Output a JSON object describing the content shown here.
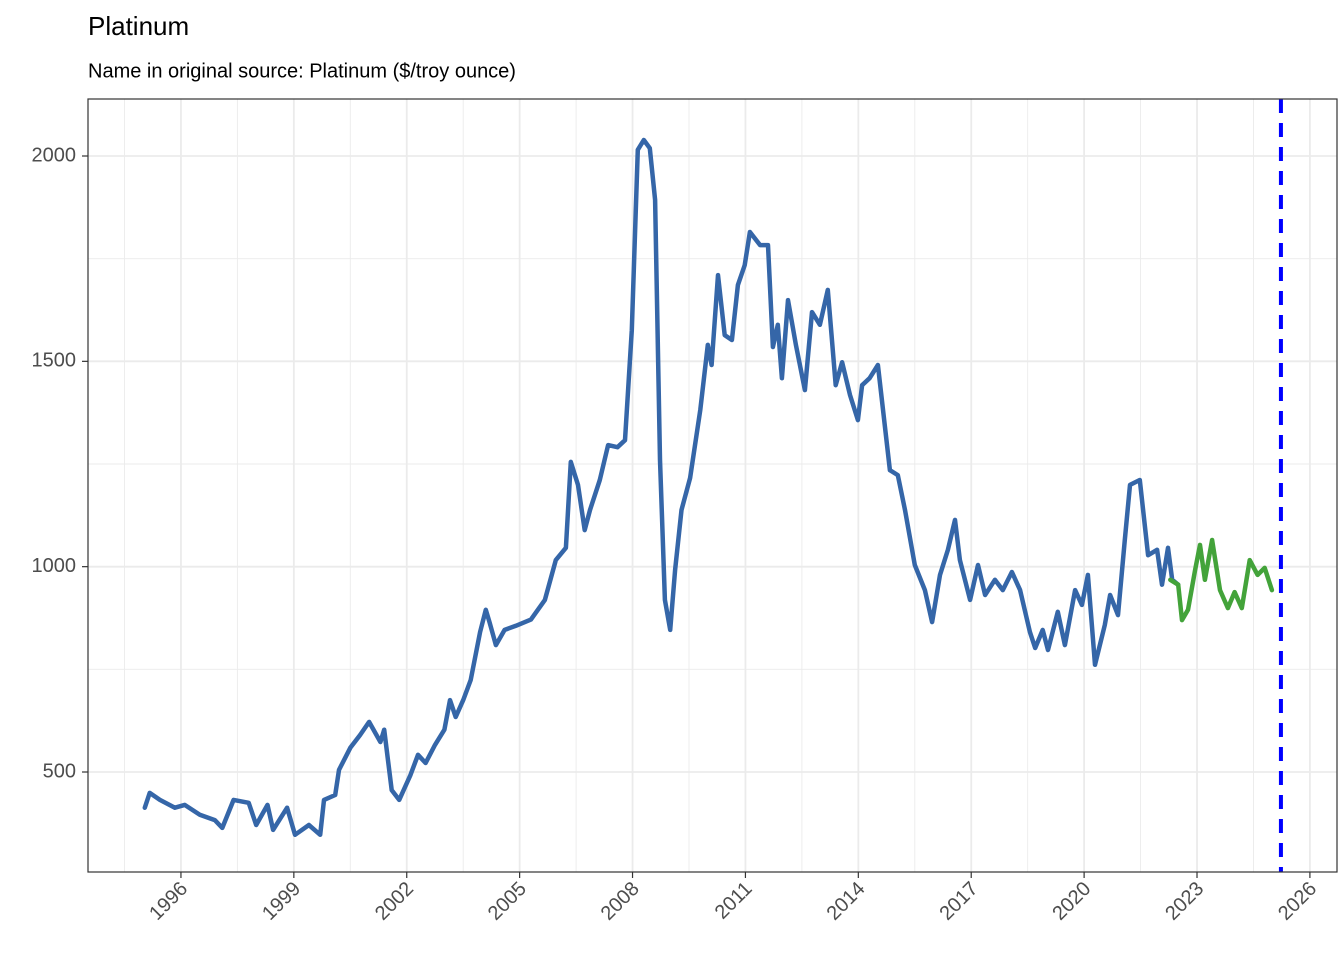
{
  "chart_data": {
    "type": "line",
    "title": "Platinum",
    "subtitle": "Name in original source: Platinum ($/troy ounce)",
    "xlim": [
      1993.53,
      2026.72
    ],
    "xticks": [
      1996,
      1999,
      2002,
      2005,
      2008,
      2011,
      2014,
      2017,
      2020,
      2023,
      2026
    ],
    "ylim": [
      256.5,
      2138.8
    ],
    "yticks": [
      500,
      1000,
      1500,
      2000
    ],
    "grid": true,
    "vline": {
      "x": 2025.23,
      "color": "#0000ff",
      "dashed": true
    },
    "series": [
      {
        "color": "#3566a8",
        "x": [
          1995.04,
          1995.17,
          1995.44,
          1995.84,
          1996.1,
          1996.5,
          1996.9,
          1997.1,
          1997.4,
          1997.8,
          1998.0,
          1998.3,
          1998.45,
          1998.82,
          1999.03,
          1999.4,
          1999.7,
          1999.8,
          2000.1,
          2000.2,
          2000.5,
          2000.76,
          2001.0,
          2001.3,
          2001.4,
          2001.6,
          2001.8,
          2002.1,
          2002.3,
          2002.5,
          2002.75,
          2003.0,
          2003.15,
          2003.3,
          2003.5,
          2003.7,
          2003.95,
          2004.1,
          2004.2,
          2004.37,
          2004.6,
          2004.9,
          2005.3,
          2005.67,
          2005.96,
          2006.23,
          2006.36,
          2006.55,
          2006.73,
          2006.87,
          2007.13,
          2007.35,
          2007.6,
          2007.8,
          2007.98,
          2008.14,
          2008.3,
          2008.46,
          2008.6,
          2008.73,
          2008.86,
          2009.0,
          2009.13,
          2009.3,
          2009.53,
          2009.8,
          2010.0,
          2010.1,
          2010.27,
          2010.45,
          2010.64,
          2010.8,
          2010.98,
          2011.12,
          2011.39,
          2011.6,
          2011.73,
          2011.86,
          2011.97,
          2012.13,
          2012.34,
          2012.58,
          2012.77,
          2012.98,
          2013.19,
          2013.4,
          2013.57,
          2013.78,
          2013.99,
          2014.1,
          2014.3,
          2014.52,
          2014.84,
          2015.05,
          2015.24,
          2015.5,
          2015.77,
          2015.96,
          2016.17,
          2016.38,
          2016.57,
          2016.7,
          2016.97,
          2017.18,
          2017.37,
          2017.63,
          2017.84,
          2018.08,
          2018.3,
          2018.56,
          2018.7,
          2018.9,
          2019.04,
          2019.3,
          2019.49,
          2019.76,
          2019.94,
          2020.1,
          2020.29,
          2020.55,
          2020.69,
          2020.9,
          2021.08,
          2021.22,
          2021.48,
          2021.7,
          2021.94,
          2022.07,
          2022.23,
          2022.34,
          2022.5
        ],
        "values": [
          413,
          449,
          432,
          413,
          420,
          396,
          383,
          364,
          432,
          425,
          371,
          420,
          359,
          413,
          347,
          371,
          347,
          432,
          444,
          505,
          559,
          590,
          622,
          573,
          603,
          456,
          432,
          493,
          542,
          522,
          566,
          603,
          675,
          634,
          675,
          724,
          841,
          895,
          865,
          809,
          846,
          856,
          871,
          919,
          1016,
          1046,
          1255,
          1199,
          1089,
          1138,
          1211,
          1296,
          1291,
          1308,
          1576,
          2015,
          2039,
          2019,
          1893,
          1260,
          919,
          846,
          992,
          1138,
          1216,
          1382,
          1540,
          1491,
          1710,
          1564,
          1552,
          1686,
          1734,
          1815,
          1783,
          1783,
          1535,
          1589,
          1459,
          1649,
          1540,
          1430,
          1620,
          1589,
          1674,
          1442,
          1498,
          1418,
          1357,
          1442,
          1459,
          1491,
          1235,
          1223,
          1138,
          1004,
          943,
          865,
          980,
          1041,
          1114,
          1016,
          919,
          1004,
          931,
          968,
          943,
          987,
          943,
          841,
          802,
          846,
          797,
          890,
          809,
          943,
          907,
          980,
          761,
          858,
          931,
          882,
          1065,
          1199,
          1211,
          1028,
          1041,
          956,
          1046,
          968,
          956
        ]
      },
      {
        "color": "#43a33a",
        "x": [
          2022.29,
          2022.5,
          2022.6,
          2022.76,
          2022.95,
          2023.08,
          2023.21,
          2023.4,
          2023.61,
          2023.82,
          2024.0,
          2024.19,
          2024.4,
          2024.61,
          2024.8,
          2024.99
        ],
        "values": [
          968,
          956,
          870,
          895,
          992,
          1053,
          968,
          1065,
          943,
          899,
          938,
          899,
          1016,
          980,
          997,
          943
        ]
      }
    ]
  }
}
